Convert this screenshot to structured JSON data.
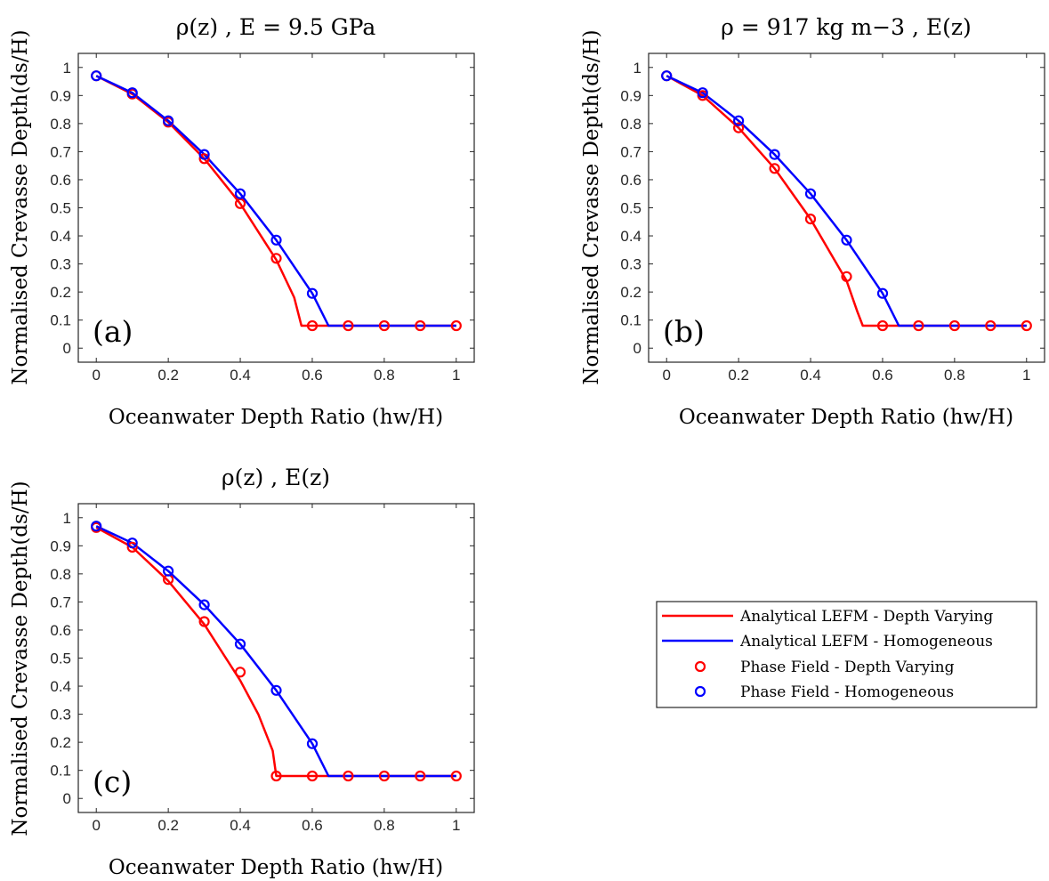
{
  "figure": {
    "legend": {
      "entries": [
        {
          "label": "Analytical LEFM - Depth Varying",
          "kind": "line",
          "color": "#ff0000"
        },
        {
          "label": "Analytical LEFM - Homogeneous",
          "kind": "line",
          "color": "#0000ff"
        },
        {
          "label": "Phase Field - Depth Varying",
          "kind": "marker",
          "color": "#ff0000"
        },
        {
          "label": "Phase Field - Homogeneous",
          "kind": "marker",
          "color": "#0000ff"
        }
      ]
    }
  },
  "chart_data": [
    {
      "type": "line",
      "title": "ρ(z) , E = 9.5 GPa",
      "panel_label": "(a)",
      "xlabel": "Oceanwater Depth Ratio (hw/H)",
      "ylabel": "Normalised Crevasse Depth(ds/H)",
      "xlim": [
        -0.05,
        1.05
      ],
      "ylim": [
        -0.05,
        1.05
      ],
      "xticks": [
        "0",
        "0.2",
        "0.4",
        "0.6",
        "0.8",
        "1"
      ],
      "xtick_values": [
        0,
        0.2,
        0.4,
        0.6,
        0.8,
        1
      ],
      "yticks": [
        "0",
        "0.1",
        "0.2",
        "0.3",
        "0.4",
        "0.5",
        "0.6",
        "0.7",
        "0.8",
        "0.9",
        "1"
      ],
      "ytick_values": [
        0,
        0.1,
        0.2,
        0.3,
        0.4,
        0.5,
        0.6,
        0.7,
        0.8,
        0.9,
        1
      ],
      "grid": false,
      "series": [
        {
          "name": "Analytical LEFM - Depth Varying",
          "style": "line",
          "color": "#ff0000",
          "x": [
            0,
            0.1,
            0.2,
            0.3,
            0.4,
            0.5,
            0.55,
            0.57,
            0.6,
            0.7,
            0.8,
            0.9,
            1.0
          ],
          "y": [
            0.97,
            0.905,
            0.805,
            0.675,
            0.515,
            0.315,
            0.18,
            0.08,
            0.08,
            0.08,
            0.08,
            0.08,
            0.08
          ]
        },
        {
          "name": "Analytical LEFM - Homogeneous",
          "style": "line",
          "color": "#0000ff",
          "x": [
            0,
            0.1,
            0.2,
            0.3,
            0.4,
            0.5,
            0.6,
            0.645,
            0.7,
            0.8,
            0.9,
            1.0
          ],
          "y": [
            0.97,
            0.91,
            0.81,
            0.69,
            0.55,
            0.385,
            0.195,
            0.08,
            0.08,
            0.08,
            0.08,
            0.08
          ]
        },
        {
          "name": "Phase Field - Depth Varying",
          "style": "marker",
          "color": "#ff0000",
          "x": [
            0,
            0.1,
            0.2,
            0.3,
            0.4,
            0.5,
            0.6,
            0.7,
            0.8,
            0.9,
            1.0
          ],
          "y": [
            0.97,
            0.905,
            0.805,
            0.675,
            0.515,
            0.32,
            0.08,
            0.08,
            0.08,
            0.08,
            0.08
          ]
        },
        {
          "name": "Phase Field - Homogeneous",
          "style": "marker",
          "color": "#0000ff",
          "x": [
            0,
            0.1,
            0.2,
            0.3,
            0.4,
            0.5,
            0.6
          ],
          "y": [
            0.97,
            0.91,
            0.81,
            0.69,
            0.55,
            0.385,
            0.195
          ]
        }
      ]
    },
    {
      "type": "line",
      "title": "ρ = 917 kg m−3 , E(z)",
      "panel_label": "(b)",
      "xlabel": "Oceanwater Depth Ratio (hw/H)",
      "ylabel": "Normalised Crevasse Depth(ds/H)",
      "xlim": [
        -0.05,
        1.05
      ],
      "ylim": [
        -0.05,
        1.05
      ],
      "xticks": [
        "0",
        "0.2",
        "0.4",
        "0.6",
        "0.8",
        "1"
      ],
      "xtick_values": [
        0,
        0.2,
        0.4,
        0.6,
        0.8,
        1
      ],
      "yticks": [
        "0",
        "0.1",
        "0.2",
        "0.3",
        "0.4",
        "0.5",
        "0.6",
        "0.7",
        "0.8",
        "0.9",
        "1"
      ],
      "ytick_values": [
        0,
        0.1,
        0.2,
        0.3,
        0.4,
        0.5,
        0.6,
        0.7,
        0.8,
        0.9,
        1
      ],
      "grid": false,
      "series": [
        {
          "name": "Analytical LEFM - Depth Varying",
          "style": "line",
          "color": "#ff0000",
          "x": [
            0,
            0.1,
            0.2,
            0.3,
            0.4,
            0.5,
            0.53,
            0.545,
            0.6,
            0.7,
            0.8,
            0.9,
            1.0
          ],
          "y": [
            0.97,
            0.9,
            0.785,
            0.64,
            0.46,
            0.24,
            0.13,
            0.08,
            0.08,
            0.08,
            0.08,
            0.08,
            0.08
          ]
        },
        {
          "name": "Analytical LEFM - Homogeneous",
          "style": "line",
          "color": "#0000ff",
          "x": [
            0,
            0.1,
            0.2,
            0.3,
            0.4,
            0.5,
            0.6,
            0.645,
            0.7,
            0.8,
            0.9,
            1.0
          ],
          "y": [
            0.97,
            0.91,
            0.81,
            0.69,
            0.55,
            0.385,
            0.195,
            0.08,
            0.08,
            0.08,
            0.08,
            0.08
          ]
        },
        {
          "name": "Phase Field - Depth Varying",
          "style": "marker",
          "color": "#ff0000",
          "x": [
            0,
            0.1,
            0.2,
            0.3,
            0.4,
            0.5,
            0.6,
            0.7,
            0.8,
            0.9,
            1.0
          ],
          "y": [
            0.97,
            0.9,
            0.785,
            0.64,
            0.46,
            0.255,
            0.08,
            0.08,
            0.08,
            0.08,
            0.08
          ]
        },
        {
          "name": "Phase Field - Homogeneous",
          "style": "marker",
          "color": "#0000ff",
          "x": [
            0,
            0.1,
            0.2,
            0.3,
            0.4,
            0.5,
            0.6
          ],
          "y": [
            0.97,
            0.91,
            0.81,
            0.69,
            0.55,
            0.385,
            0.195
          ]
        }
      ]
    },
    {
      "type": "line",
      "title": "ρ(z) , E(z)",
      "panel_label": "(c)",
      "xlabel": "Oceanwater Depth Ratio (hw/H)",
      "ylabel": "Normalised Crevasse Depth(ds/H)",
      "xlim": [
        -0.05,
        1.05
      ],
      "ylim": [
        -0.05,
        1.05
      ],
      "xticks": [
        "0",
        "0.2",
        "0.4",
        "0.6",
        "0.8",
        "1"
      ],
      "xtick_values": [
        0,
        0.2,
        0.4,
        0.6,
        0.8,
        1
      ],
      "yticks": [
        "0",
        "0.1",
        "0.2",
        "0.3",
        "0.4",
        "0.5",
        "0.6",
        "0.7",
        "0.8",
        "0.9",
        "1"
      ],
      "ytick_values": [
        0,
        0.1,
        0.2,
        0.3,
        0.4,
        0.5,
        0.6,
        0.7,
        0.8,
        0.9,
        1
      ],
      "grid": false,
      "series": [
        {
          "name": "Analytical LEFM - Depth Varying",
          "style": "line",
          "color": "#ff0000",
          "x": [
            0,
            0.1,
            0.2,
            0.3,
            0.4,
            0.45,
            0.49,
            0.5,
            0.6,
            0.7,
            0.8,
            0.9,
            1.0
          ],
          "y": [
            0.965,
            0.895,
            0.775,
            0.62,
            0.42,
            0.3,
            0.17,
            0.08,
            0.08,
            0.08,
            0.08,
            0.08,
            0.08
          ]
        },
        {
          "name": "Analytical LEFM - Homogeneous",
          "style": "line",
          "color": "#0000ff",
          "x": [
            0,
            0.1,
            0.2,
            0.3,
            0.4,
            0.5,
            0.6,
            0.645,
            0.7,
            0.8,
            0.9,
            1.0
          ],
          "y": [
            0.97,
            0.91,
            0.81,
            0.69,
            0.55,
            0.385,
            0.195,
            0.08,
            0.08,
            0.08,
            0.08,
            0.08
          ]
        },
        {
          "name": "Phase Field - Depth Varying",
          "style": "marker",
          "color": "#ff0000",
          "x": [
            0,
            0.1,
            0.2,
            0.3,
            0.4,
            0.5,
            0.6,
            0.7,
            0.8,
            0.9,
            1.0
          ],
          "y": [
            0.965,
            0.895,
            0.78,
            0.63,
            0.45,
            0.08,
            0.08,
            0.08,
            0.08,
            0.08,
            0.08
          ]
        },
        {
          "name": "Phase Field - Homogeneous",
          "style": "marker",
          "color": "#0000ff",
          "x": [
            0,
            0.1,
            0.2,
            0.3,
            0.4,
            0.5,
            0.6
          ],
          "y": [
            0.97,
            0.91,
            0.81,
            0.69,
            0.55,
            0.385,
            0.195
          ]
        }
      ]
    }
  ]
}
